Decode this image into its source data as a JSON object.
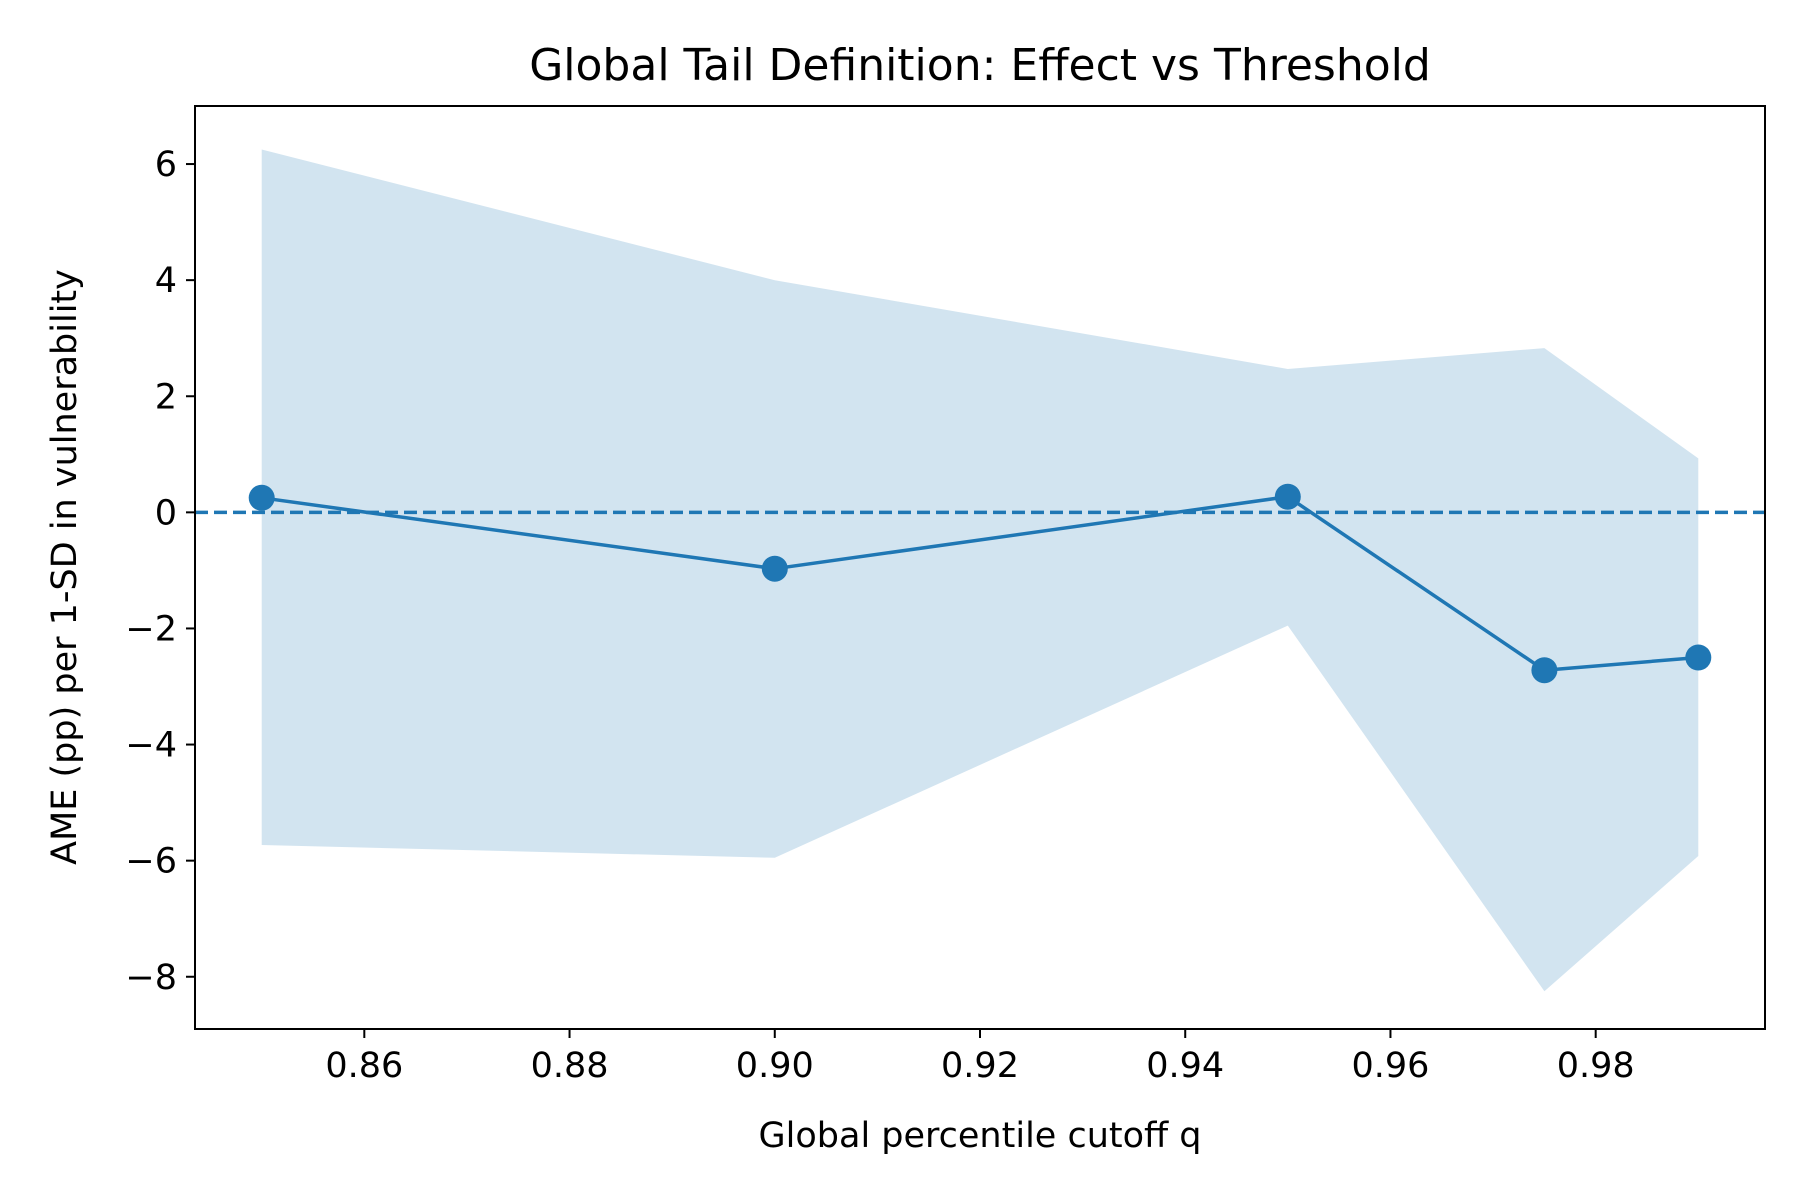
{
  "chart_data": {
    "type": "line",
    "title": "Global Tail Definition: Effect vs Threshold",
    "xlabel": "Global percentile cutoff q",
    "ylabel": "AME (pp) per 1-SD in vulnerability",
    "xlim": [
      0.8435,
      0.9965
    ],
    "ylim": [
      -8.9,
      7.0
    ],
    "x_ticks": [
      {
        "value": 0.86,
        "label": "0.86"
      },
      {
        "value": 0.88,
        "label": "0.88"
      },
      {
        "value": 0.9,
        "label": "0.90"
      },
      {
        "value": 0.92,
        "label": "0.92"
      },
      {
        "value": 0.94,
        "label": "0.94"
      },
      {
        "value": 0.96,
        "label": "0.96"
      },
      {
        "value": 0.98,
        "label": "0.98"
      }
    ],
    "y_ticks": [
      {
        "value": 6,
        "label": "6"
      },
      {
        "value": 4,
        "label": "4"
      },
      {
        "value": 2,
        "label": "2"
      },
      {
        "value": 0,
        "label": "0"
      },
      {
        "value": -2,
        "label": "−2"
      },
      {
        "value": -4,
        "label": "−4"
      },
      {
        "value": -6,
        "label": "−6"
      },
      {
        "value": -8,
        "label": "−8"
      }
    ],
    "series": [
      {
        "x": [
          0.85,
          0.9,
          0.95,
          0.975,
          0.99
        ],
        "y": [
          0.25,
          -0.97,
          0.27,
          -2.72,
          -2.5
        ],
        "ci_lower": [
          -5.73,
          -5.95,
          -1.95,
          -8.25,
          -5.92
        ],
        "ci_upper": [
          6.25,
          4.0,
          2.47,
          2.83,
          0.93
        ],
        "color": "#1f77b4",
        "band_color": "#1f77b4"
      }
    ],
    "reference_line": {
      "y": 0,
      "style": "dashed",
      "color": "#1f77b4"
    },
    "grid": false
  }
}
